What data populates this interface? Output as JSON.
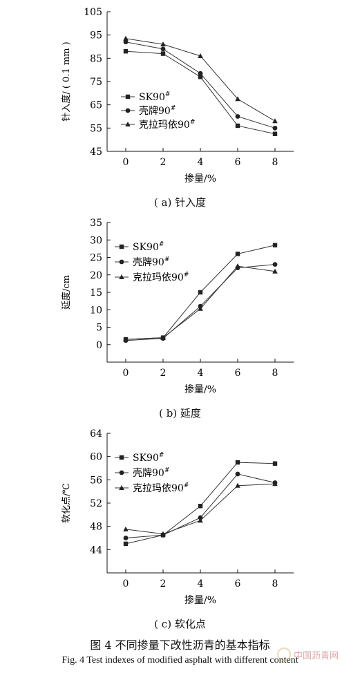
{
  "figure": {
    "caption_cn": "图 4 不同掺量下改性沥青的基本指标",
    "caption_en": "Fig. 4 Test indexes of modified asphalt with different content",
    "watermark": "中国沥青网"
  },
  "chart_data": [
    {
      "type": "line",
      "subcaption": "( a)  针入度",
      "xlabel": "掺量/%",
      "ylabel": "针入度/ ( 0.1 mm )",
      "x": [
        0,
        2,
        4,
        6,
        8
      ],
      "xticks": [
        "0",
        "2",
        "4",
        "6",
        "8"
      ],
      "xlim": [
        -1,
        9
      ],
      "ylim": [
        45,
        105
      ],
      "yticks": [
        45,
        55,
        65,
        75,
        85,
        95,
        105
      ],
      "legend_position": "center-left",
      "series": [
        {
          "name": "SK90#",
          "marker": "square",
          "values": [
            88,
            87,
            77,
            56,
            52.5
          ]
        },
        {
          "name": "壳牌90#",
          "marker": "circle",
          "values": [
            92,
            89,
            78.5,
            60,
            55
          ]
        },
        {
          "name": "克拉玛依90#",
          "marker": "triangle",
          "values": [
            93.5,
            91,
            86,
            67.5,
            58
          ]
        }
      ]
    },
    {
      "type": "line",
      "subcaption": "( b)  延度",
      "xlabel": "掺量/%",
      "ylabel": "延度/cm",
      "x": [
        0,
        2,
        4,
        6,
        8
      ],
      "xticks": [
        "0",
        "2",
        "4",
        "6",
        "8"
      ],
      "xlim": [
        -1,
        9
      ],
      "ylim": [
        -5,
        35
      ],
      "yticks": [
        0,
        5,
        10,
        15,
        20,
        25,
        30,
        35
      ],
      "legend_position": "top-left",
      "series": [
        {
          "name": "SK90#",
          "marker": "square",
          "values": [
            1.5,
            2,
            15,
            26,
            28.5
          ]
        },
        {
          "name": "壳牌90#",
          "marker": "circle",
          "values": [
            1.2,
            1.8,
            11,
            22,
            23
          ]
        },
        {
          "name": "克拉玛依90#",
          "marker": "triangle",
          "values": [
            1.5,
            2,
            10.3,
            22.5,
            21
          ]
        }
      ]
    },
    {
      "type": "line",
      "subcaption": "( c)  软化点",
      "xlabel": "掺量/%",
      "ylabel": "软化点/℃",
      "x": [
        0,
        2,
        4,
        6,
        8
      ],
      "xticks": [
        "0",
        "2",
        "4",
        "6",
        "8"
      ],
      "xlim": [
        -1,
        9
      ],
      "ylim": [
        40,
        64
      ],
      "yticks": [
        44,
        48,
        52,
        56,
        60,
        64
      ],
      "legend_position": "top-left",
      "series": [
        {
          "name": "SK90#",
          "marker": "square",
          "values": [
            45,
            46.5,
            51.5,
            59,
            58.8
          ]
        },
        {
          "name": "壳牌90#",
          "marker": "circle",
          "values": [
            46,
            46.5,
            49.5,
            57,
            55.5
          ]
        },
        {
          "name": "克拉玛依90#",
          "marker": "triangle",
          "values": [
            47.5,
            46.7,
            49,
            55,
            55.3
          ]
        }
      ]
    }
  ]
}
